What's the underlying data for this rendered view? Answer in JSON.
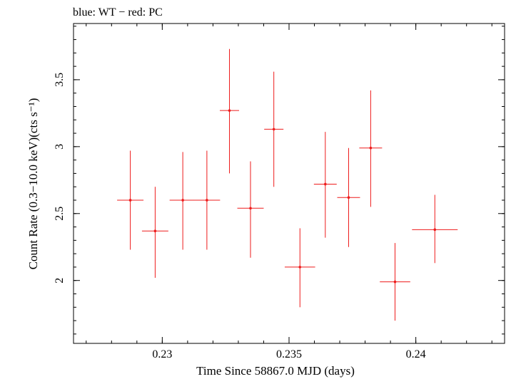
{
  "chart_data": {
    "type": "scatter",
    "title": "blue: WT − red: PC",
    "xlabel": "Time Since 58867.0 MJD (days)",
    "ylabel": "Count Rate (0.3−10.0 keV)(cts s⁻¹)",
    "xlim": [
      0.2265,
      0.2435
    ],
    "ylim": [
      1.53,
      3.92
    ],
    "x_ticks": [
      {
        "value": 0.23,
        "label": "0.23"
      },
      {
        "value": 0.235,
        "label": "0.235"
      },
      {
        "value": 0.24,
        "label": "0.24"
      }
    ],
    "y_ticks": [
      {
        "value": 2.0,
        "label": "2"
      },
      {
        "value": 2.5,
        "label": "2.5"
      },
      {
        "value": 3.0,
        "label": "3"
      },
      {
        "value": 3.5,
        "label": "3.5"
      }
    ],
    "x_minor_step": 0.001,
    "y_minor_step": 0.1,
    "grid": false,
    "series": [
      {
        "color": "#ee1c1c",
        "points": [
          {
            "x": 0.22874,
            "y": 2.6,
            "xerr": 0.00052,
            "ylo": 2.23,
            "yhi": 2.97
          },
          {
            "x": 0.22972,
            "y": 2.37,
            "xerr": 0.00052,
            "ylo": 2.02,
            "yhi": 2.7
          },
          {
            "x": 0.23081,
            "y": 2.6,
            "xerr": 0.00052,
            "ylo": 2.23,
            "yhi": 2.96
          },
          {
            "x": 0.23176,
            "y": 2.6,
            "xerr": 0.00052,
            "ylo": 2.23,
            "yhi": 2.97
          },
          {
            "x": 0.23265,
            "y": 3.27,
            "xerr": 0.00038,
            "ylo": 2.8,
            "yhi": 3.73
          },
          {
            "x": 0.23348,
            "y": 2.54,
            "xerr": 0.00052,
            "ylo": 2.17,
            "yhi": 2.89
          },
          {
            "x": 0.2344,
            "y": 3.13,
            "xerr": 0.00038,
            "ylo": 2.7,
            "yhi": 3.56
          },
          {
            "x": 0.23543,
            "y": 2.1,
            "xerr": 0.0006,
            "ylo": 1.8,
            "yhi": 2.39
          },
          {
            "x": 0.23643,
            "y": 2.72,
            "xerr": 0.00045,
            "ylo": 2.32,
            "yhi": 3.11
          },
          {
            "x": 0.23735,
            "y": 2.62,
            "xerr": 0.00045,
            "ylo": 2.25,
            "yhi": 2.99
          },
          {
            "x": 0.23822,
            "y": 2.99,
            "xerr": 0.00045,
            "ylo": 2.55,
            "yhi": 3.42
          },
          {
            "x": 0.23918,
            "y": 1.99,
            "xerr": 0.0006,
            "ylo": 1.7,
            "yhi": 2.28
          },
          {
            "x": 0.24075,
            "y": 2.38,
            "xerr": 0.0009,
            "ylo": 2.13,
            "yhi": 2.64
          }
        ]
      }
    ]
  }
}
